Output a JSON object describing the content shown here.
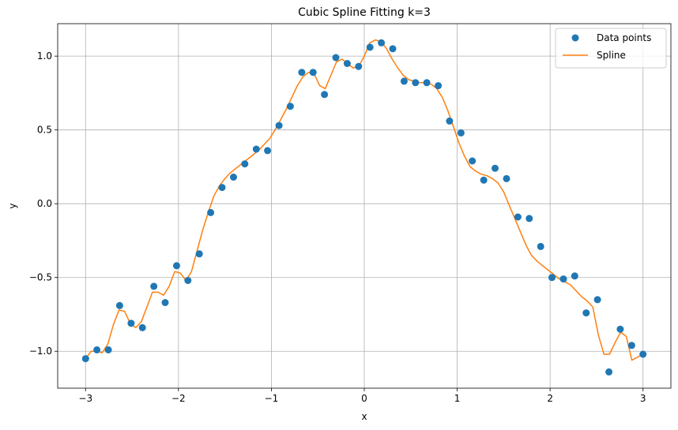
{
  "chart_data": {
    "type": "line",
    "title": "Cubic Spline Fitting k=3",
    "xlabel": "x",
    "ylabel": "y",
    "xlim": [
      -3.3,
      3.3
    ],
    "ylim": [
      -1.25,
      1.22
    ],
    "xticks": [
      -3,
      -2,
      -1,
      0,
      1,
      2,
      3
    ],
    "xtick_labels": [
      "−3",
      "−2",
      "−1",
      "0",
      "1",
      "2",
      "3"
    ],
    "yticks": [
      -1.0,
      -0.5,
      0.0,
      0.5,
      1.0
    ],
    "ytick_labels": [
      "−1.0",
      "−0.5",
      "0.0",
      "0.5",
      "1.0"
    ],
    "grid": true,
    "legend_position": "top-right",
    "series": [
      {
        "name": "Data points",
        "kind": "scatter",
        "color": "#1f77b4",
        "x": [
          -3.0,
          -2.878,
          -2.755,
          -2.633,
          -2.51,
          -2.388,
          -2.265,
          -2.143,
          -2.02,
          -1.898,
          -1.776,
          -1.653,
          -1.531,
          -1.408,
          -1.286,
          -1.163,
          -1.041,
          -0.918,
          -0.796,
          -0.673,
          -0.551,
          -0.429,
          -0.306,
          -0.184,
          -0.061,
          0.061,
          0.184,
          0.306,
          0.429,
          0.551,
          0.673,
          0.796,
          0.918,
          1.041,
          1.163,
          1.286,
          1.408,
          1.531,
          1.653,
          1.776,
          1.898,
          2.02,
          2.143,
          2.265,
          2.388,
          2.51,
          2.633,
          2.755,
          2.878,
          3.0
        ],
        "y": [
          -1.05,
          -0.99,
          -0.99,
          -0.69,
          -0.81,
          -0.84,
          -0.56,
          -0.67,
          -0.42,
          -0.52,
          -0.34,
          -0.06,
          0.11,
          0.18,
          0.27,
          0.37,
          0.36,
          0.53,
          0.66,
          0.89,
          0.89,
          0.74,
          0.99,
          0.95,
          0.93,
          1.06,
          1.09,
          1.05,
          0.83,
          0.82,
          0.82,
          0.8,
          0.56,
          0.48,
          0.29,
          0.16,
          0.24,
          0.17,
          -0.09,
          -0.1,
          -0.29,
          -0.5,
          -0.51,
          -0.49,
          -0.74,
          -0.65,
          -1.14,
          -0.85,
          -0.96,
          -1.02
        ]
      },
      {
        "name": "Spline",
        "kind": "line",
        "color": "#ff7f0e",
        "x": [
          -3.0,
          -2.94,
          -2.88,
          -2.82,
          -2.76,
          -2.7,
          -2.64,
          -2.58,
          -2.52,
          -2.46,
          -2.4,
          -2.34,
          -2.28,
          -2.22,
          -2.16,
          -2.1,
          -2.04,
          -1.98,
          -1.92,
          -1.86,
          -1.8,
          -1.74,
          -1.68,
          -1.62,
          -1.56,
          -1.5,
          -1.44,
          -1.38,
          -1.32,
          -1.26,
          -1.2,
          -1.14,
          -1.08,
          -1.02,
          -0.96,
          -0.9,
          -0.84,
          -0.78,
          -0.72,
          -0.66,
          -0.6,
          -0.54,
          -0.48,
          -0.42,
          -0.36,
          -0.3,
          -0.24,
          -0.18,
          -0.12,
          -0.06,
          0.0,
          0.06,
          0.12,
          0.18,
          0.24,
          0.3,
          0.36,
          0.42,
          0.48,
          0.54,
          0.6,
          0.66,
          0.72,
          0.78,
          0.84,
          0.9,
          0.96,
          1.02,
          1.08,
          1.14,
          1.2,
          1.26,
          1.32,
          1.38,
          1.44,
          1.5,
          1.56,
          1.62,
          1.68,
          1.74,
          1.8,
          1.86,
          1.92,
          1.98,
          2.04,
          2.1,
          2.16,
          2.22,
          2.28,
          2.34,
          2.4,
          2.46,
          2.52,
          2.58,
          2.64,
          2.7,
          2.76,
          2.82,
          2.88,
          2.94,
          3.0
        ],
        "y": [
          -1.05,
          -1.0,
          -1.0,
          -1.01,
          -0.95,
          -0.82,
          -0.72,
          -0.73,
          -0.81,
          -0.84,
          -0.8,
          -0.7,
          -0.6,
          -0.6,
          -0.62,
          -0.56,
          -0.46,
          -0.47,
          -0.52,
          -0.46,
          -0.32,
          -0.18,
          -0.06,
          0.05,
          0.12,
          0.17,
          0.21,
          0.24,
          0.27,
          0.3,
          0.33,
          0.36,
          0.4,
          0.44,
          0.5,
          0.57,
          0.64,
          0.72,
          0.8,
          0.86,
          0.89,
          0.88,
          0.8,
          0.78,
          0.87,
          0.96,
          0.98,
          0.95,
          0.92,
          0.93,
          1.0,
          1.09,
          1.11,
          1.1,
          1.05,
          0.98,
          0.92,
          0.87,
          0.84,
          0.83,
          0.82,
          0.82,
          0.81,
          0.78,
          0.72,
          0.63,
          0.52,
          0.41,
          0.32,
          0.25,
          0.22,
          0.2,
          0.19,
          0.17,
          0.14,
          0.08,
          -0.01,
          -0.1,
          -0.19,
          -0.28,
          -0.35,
          -0.39,
          -0.42,
          -0.45,
          -0.48,
          -0.51,
          -0.53,
          -0.55,
          -0.59,
          -0.63,
          -0.66,
          -0.7,
          -0.89,
          -1.02,
          -1.02,
          -0.94,
          -0.87,
          -0.9,
          -1.06,
          -1.04,
          -1.02
        ]
      }
    ]
  }
}
